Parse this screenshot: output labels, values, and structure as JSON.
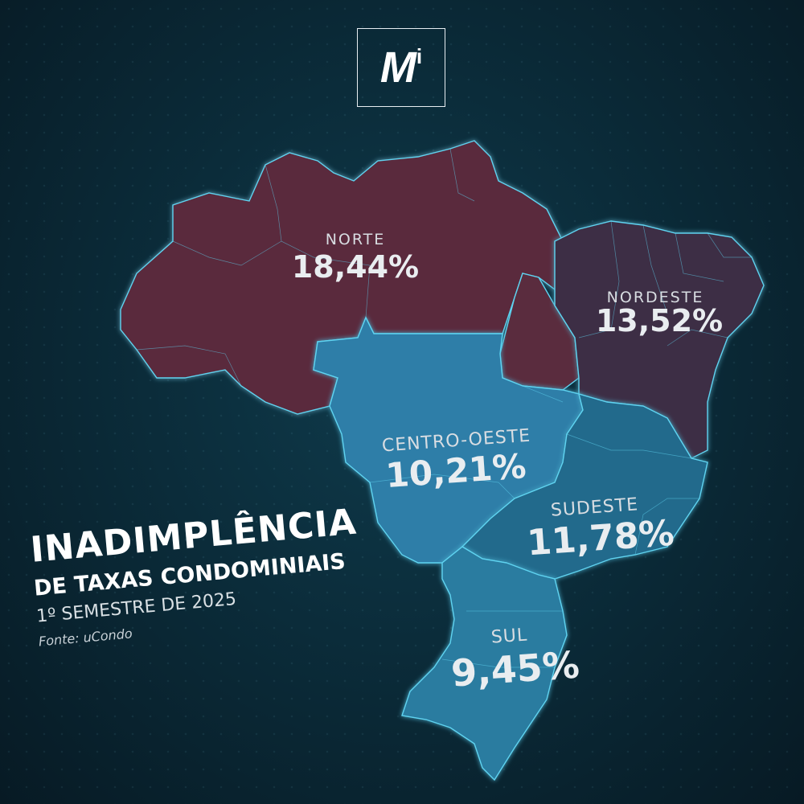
{
  "logo": {
    "main": "M",
    "superscript": "i"
  },
  "title": {
    "line1": "INADIMPLÊNCIA",
    "line2": "DE TAXAS CONDOMINIAIS",
    "period": "1º SEMESTRE DE 2025",
    "source": "Fonte: uCondo"
  },
  "regions": [
    {
      "name": "NORTE",
      "value": "18,44%"
    },
    {
      "name": "NORDESTE",
      "value": "13,52%"
    },
    {
      "name": "CENTRO-OESTE",
      "value": "10,21%"
    },
    {
      "name": "SUDESTE",
      "value": "11,78%"
    },
    {
      "name": "SUL",
      "value": "9,45%"
    }
  ],
  "colors": {
    "norte": "#5a2c3e",
    "nordeste": "#3e2f45",
    "centro_oeste": "#2d7ea8",
    "sudeste": "#246a8c",
    "sul": "#2a7ba0",
    "border_glow": "#5fd3f0"
  }
}
